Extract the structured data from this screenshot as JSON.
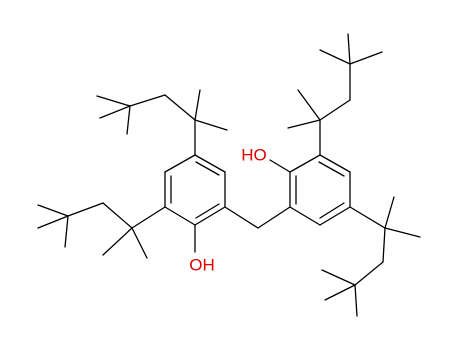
{
  "labels": {
    "left_hydroxyl": "OH",
    "right_hydroxyl": "HO"
  }
}
